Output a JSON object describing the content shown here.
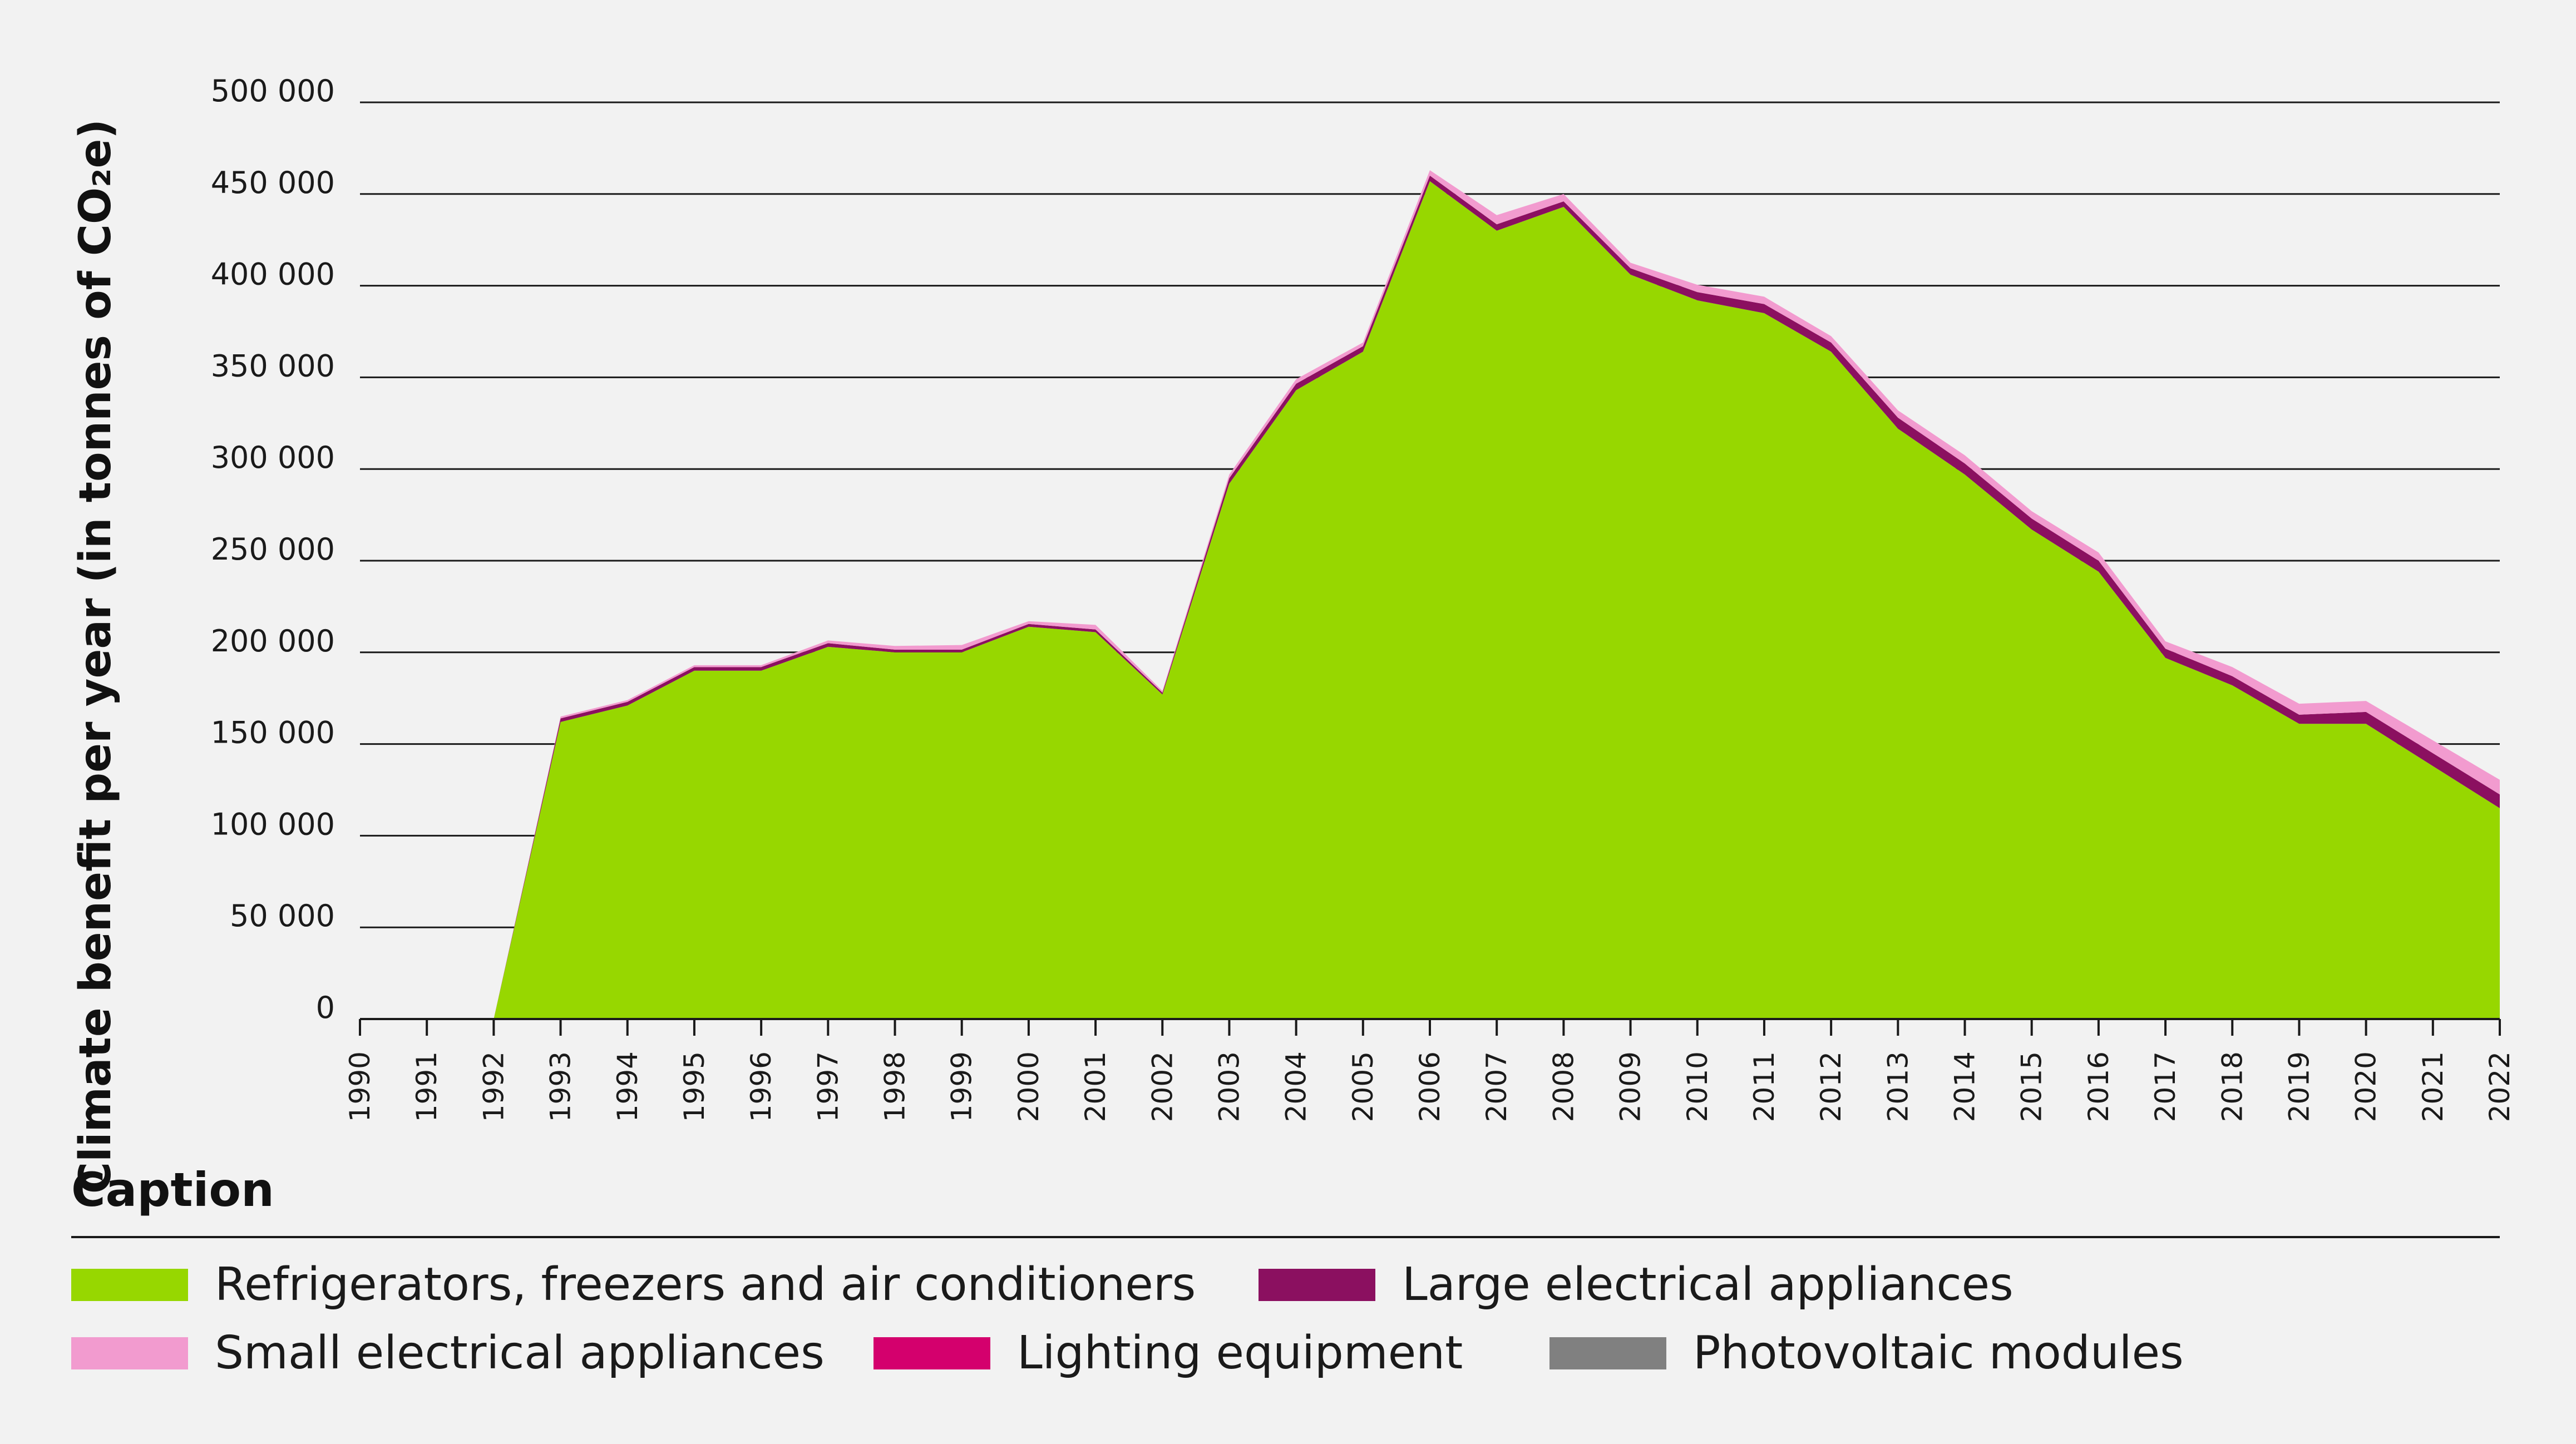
{
  "chart_data": {
    "type": "area",
    "stacked": true,
    "ylabel": "Climate benefit per year (in tonnes of CO₂e)",
    "ylim": [
      0,
      500000
    ],
    "y_ticks": [
      0,
      50000,
      100000,
      150000,
      200000,
      250000,
      300000,
      350000,
      400000,
      450000,
      500000
    ],
    "y_tick_labels": [
      "0",
      "50 000",
      "100 000",
      "150 000",
      "200 000",
      "250 000",
      "300 000",
      "350 000",
      "400 000",
      "450 000",
      "500 000"
    ],
    "grid": "horizontal",
    "x": [
      "1990",
      "1991",
      "1992",
      "1993",
      "1994",
      "1995",
      "1996",
      "1997",
      "1998",
      "1999",
      "2000",
      "2001",
      "2002",
      "2003",
      "2004",
      "2005",
      "2006",
      "2007",
      "2008",
      "2009",
      "2010",
      "2011",
      "2012",
      "2013",
      "2014",
      "2015",
      "2016",
      "2017",
      "2018",
      "2019",
      "2020",
      "2021",
      "2022"
    ],
    "series": [
      {
        "name": "Refrigerators, freezers and air conditioners",
        "color": "#97d700",
        "values": [
          0,
          0,
          0,
          162000,
          171000,
          190000,
          190000,
          203000,
          200000,
          200000,
          214000,
          211000,
          177000,
          292000,
          343000,
          364000,
          457000,
          430000,
          443000,
          406000,
          392000,
          385000,
          364000,
          322000,
          297000,
          267000,
          244000,
          197000,
          182000,
          161000,
          161000,
          138000,
          115000
        ]
      },
      {
        "name": "Large electrical appliances",
        "color": "#8b1060",
        "values": [
          0,
          0,
          0,
          2000,
          2000,
          2000,
          2000,
          2000,
          1500,
          1500,
          1500,
          1500,
          1000,
          3000,
          3500,
          3000,
          3000,
          3500,
          3000,
          3500,
          4500,
          5000,
          5000,
          6000,
          6000,
          6000,
          6000,
          5000,
          5000,
          5000,
          6500,
          7000,
          7500
        ]
      },
      {
        "name": "Small electrical appliances",
        "color": "#f29bcf",
        "values": [
          0,
          0,
          0,
          1000,
          1000,
          1000,
          1000,
          1500,
          2000,
          2500,
          1500,
          2500,
          1000,
          2000,
          2500,
          2000,
          3000,
          5000,
          4000,
          3000,
          4000,
          4000,
          3500,
          4000,
          4500,
          4000,
          4500,
          4000,
          5000,
          6000,
          6000,
          7000,
          8000
        ]
      },
      {
        "name": "Lighting equipment",
        "color": "#d4006d",
        "values": [
          0,
          0,
          0,
          0,
          0,
          0,
          0,
          0,
          0,
          0,
          0,
          0,
          0,
          0,
          0,
          0,
          0,
          0,
          0,
          0,
          0,
          0,
          0,
          0,
          0,
          0,
          0,
          0,
          0,
          0,
          0,
          0,
          0
        ]
      },
      {
        "name": "Photovoltaic modules",
        "color": "#808080",
        "values": [
          0,
          0,
          0,
          0,
          0,
          0,
          0,
          0,
          0,
          0,
          0,
          0,
          0,
          0,
          0,
          0,
          0,
          0,
          0,
          0,
          0,
          0,
          0,
          0,
          0,
          0,
          0,
          0,
          0,
          0,
          0,
          0,
          0
        ]
      }
    ],
    "stack_order": [
      "Refrigerators, freezers and air conditioners",
      "Large electrical appliances",
      "Small electrical appliances",
      "Lighting equipment",
      "Photovoltaic modules"
    ]
  },
  "legend": {
    "title": "Caption",
    "items": [
      {
        "label": "Refrigerators, freezers and air conditioners",
        "color": "#97d700"
      },
      {
        "label": "Large electrical appliances",
        "color": "#8b1060"
      },
      {
        "label": "Small electrical appliances",
        "color": "#f29bcf"
      },
      {
        "label": "Lighting equipment",
        "color": "#d4006d"
      },
      {
        "label": "Photovoltaic modules",
        "color": "#808080"
      }
    ]
  }
}
